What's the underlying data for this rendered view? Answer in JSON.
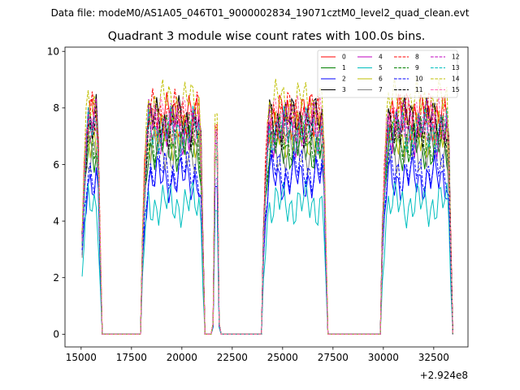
{
  "suptitle": "Data file: modeM0/AS1A05_046T01_9000002834_19071cztM0_level2_quad_clean.evt",
  "chart_data": {
    "type": "line",
    "title": "Quadrant 3 module wise count rates with 100.0s bins.",
    "xlabel": "",
    "ylabel": "",
    "x_offset_label": "+2.924e8",
    "xlim": [
      14200,
      34200
    ],
    "ylim": [
      -0.45,
      10.15
    ],
    "xticks": [
      15000,
      17500,
      20000,
      22500,
      25000,
      27500,
      30000,
      32500
    ],
    "xtick_labels": [
      "15000",
      "17500",
      "20000",
      "22500",
      "25000",
      "27500",
      "30000",
      "32500"
    ],
    "yticks": [
      0,
      2,
      4,
      6,
      8,
      10
    ],
    "ytick_labels": [
      "0",
      "2",
      "4",
      "6",
      "8",
      "10"
    ],
    "legend": {
      "placement": "top-right",
      "columns": 4,
      "entries": [
        "0",
        "1",
        "2",
        "3",
        "4",
        "5",
        "6",
        "7",
        "8",
        "9",
        "10",
        "11",
        "12",
        "13",
        "14",
        "15"
      ]
    },
    "segments": [
      {
        "t0": 15050,
        "n": 10
      },
      {
        "t0": 18050,
        "n": 31
      },
      {
        "t0": 21550,
        "n": 4
      },
      {
        "t0": 24050,
        "n": 32
      },
      {
        "t0": 29950,
        "n": 35
      }
    ],
    "series": [
      {
        "name": "0",
        "color": "#ff0000",
        "dash": "solid",
        "level": 7.7,
        "phase": 0.0
      },
      {
        "name": "1",
        "color": "#008000",
        "dash": "solid",
        "level": 6.6,
        "phase": 0.7
      },
      {
        "name": "2",
        "color": "#0000ff",
        "dash": "solid",
        "level": 5.5,
        "phase": 1.4
      },
      {
        "name": "3",
        "color": "#000000",
        "dash": "solid",
        "level": 7.6,
        "phase": 2.1
      },
      {
        "name": "4",
        "color": "#bf00bf",
        "dash": "solid",
        "level": 7.1,
        "phase": 2.8
      },
      {
        "name": "5",
        "color": "#00bfbf",
        "dash": "solid",
        "level": 4.6,
        "phase": 3.5
      },
      {
        "name": "6",
        "color": "#bfbf00",
        "dash": "solid",
        "level": 7.0,
        "phase": 4.2
      },
      {
        "name": "7",
        "color": "#808080",
        "dash": "solid",
        "level": 6.5,
        "phase": 4.9
      },
      {
        "name": "8",
        "color": "#ff0000",
        "dash": "dashed",
        "level": 7.8,
        "phase": 5.6
      },
      {
        "name": "9",
        "color": "#008000",
        "dash": "dashed",
        "level": 6.9,
        "phase": 0.35
      },
      {
        "name": "10",
        "color": "#0000ff",
        "dash": "dashed",
        "level": 5.8,
        "phase": 1.05
      },
      {
        "name": "11",
        "color": "#000000",
        "dash": "dashed",
        "level": 7.4,
        "phase": 1.75
      },
      {
        "name": "12",
        "color": "#bf00bf",
        "dash": "dashed",
        "level": 7.5,
        "phase": 2.45
      },
      {
        "name": "13",
        "color": "#00bfbf",
        "dash": "dashed",
        "level": 7.2,
        "phase": 3.15
      },
      {
        "name": "14",
        "color": "#bfbf00",
        "dash": "dashed",
        "level": 8.2,
        "phase": 3.85
      },
      {
        "name": "15",
        "color": "#ff69b4",
        "dash": "dashed",
        "level": 7.6,
        "phase": 4.55
      }
    ]
  }
}
